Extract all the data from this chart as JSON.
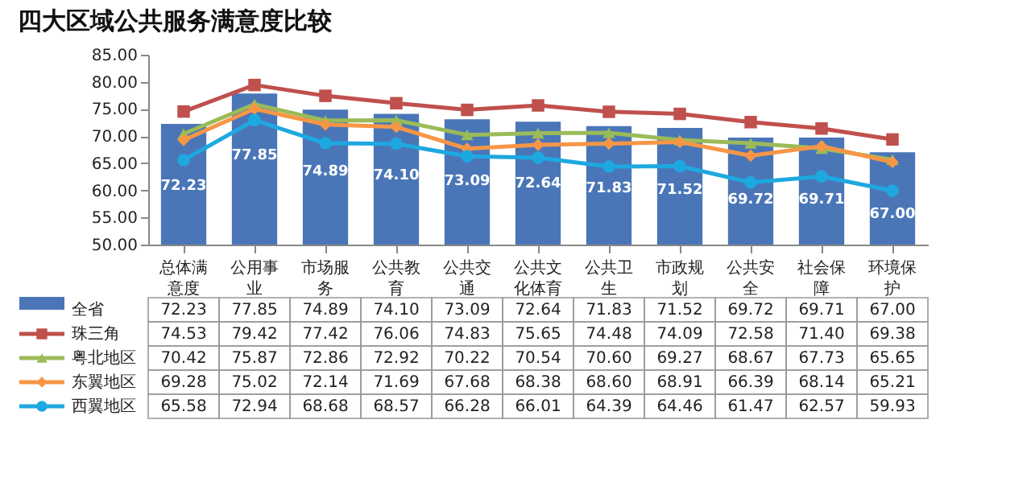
{
  "chart_data": {
    "type": "bar",
    "title": "四大区域公共服务满意度比较",
    "categories": [
      "总体满意度",
      "公用事业",
      "市场服务",
      "公共教育",
      "公共交通",
      "公共文化体育",
      "公共卫生",
      "市政规划",
      "公共安全",
      "社会保障",
      "环境保护"
    ],
    "series": [
      {
        "name": "全省",
        "color": "#4a76b8",
        "values": [
          72.23,
          77.85,
          74.89,
          74.1,
          73.09,
          72.64,
          71.83,
          71.52,
          69.72,
          69.71,
          67.0
        ],
        "value_labels": [
          "72.23",
          "77.85",
          "74.89",
          "74.10",
          "73.09",
          "72.64",
          "71.83",
          "71.52",
          "69.72",
          "69.71",
          "67.00"
        ]
      },
      {
        "name": "珠三角",
        "type": "line",
        "color": "#c0504d",
        "marker": "square",
        "values": [
          74.53,
          79.42,
          77.42,
          76.06,
          74.83,
          75.65,
          74.48,
          74.09,
          72.58,
          71.4,
          69.38
        ],
        "value_labels": [
          "74.53",
          "79.42",
          "77.42",
          "76.06",
          "74.83",
          "75.65",
          "74.48",
          "74.09",
          "72.58",
          "71.40",
          "69.38"
        ]
      },
      {
        "name": "粤北地区",
        "type": "line",
        "color": "#9bbb59",
        "marker": "triangle",
        "values": [
          70.42,
          75.87,
          72.86,
          72.92,
          70.22,
          70.54,
          70.6,
          69.27,
          68.67,
          67.73,
          65.65
        ],
        "value_labels": [
          "70.42",
          "75.87",
          "72.86",
          "72.92",
          "70.22",
          "70.54",
          "70.60",
          "69.27",
          "68.67",
          "67.73",
          "65.65"
        ]
      },
      {
        "name": "东翼地区",
        "type": "line",
        "color": "#f79646",
        "marker": "diamond",
        "values": [
          69.28,
          75.02,
          72.14,
          71.69,
          67.68,
          68.38,
          68.6,
          68.91,
          66.39,
          68.14,
          65.21
        ],
        "value_labels": [
          "69.28",
          "75.02",
          "72.14",
          "71.69",
          "67.68",
          "68.38",
          "68.60",
          "68.91",
          "66.39",
          "68.14",
          "65.21"
        ]
      },
      {
        "name": "西翼地区",
        "type": "line",
        "color": "#1ea8e0",
        "marker": "circle",
        "values": [
          65.58,
          72.94,
          68.68,
          68.57,
          66.28,
          66.01,
          64.39,
          64.46,
          61.47,
          62.57,
          59.93
        ],
        "value_labels": [
          "65.58",
          "72.94",
          "68.68",
          "68.57",
          "66.28",
          "66.01",
          "64.39",
          "64.46",
          "61.47",
          "62.57",
          "59.93"
        ]
      }
    ],
    "ylim": [
      50,
      85
    ],
    "yticks": [
      {
        "value": 50,
        "label": "50.00"
      },
      {
        "value": 55,
        "label": "55.00"
      },
      {
        "value": 60,
        "label": "60.00"
      },
      {
        "value": 65,
        "label": "65.00"
      },
      {
        "value": 70,
        "label": "70.00"
      },
      {
        "value": 75,
        "label": "75.00"
      },
      {
        "value": 80,
        "label": "80.00"
      },
      {
        "value": 85,
        "label": "85.00"
      }
    ],
    "legend": "bottom",
    "grid": false
  }
}
